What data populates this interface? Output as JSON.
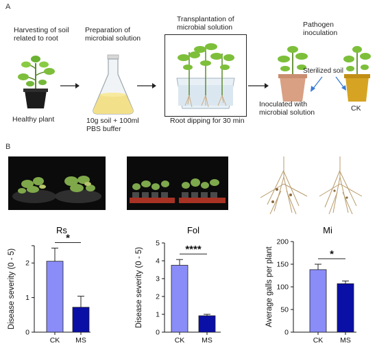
{
  "figure": {
    "panel_a_label": "A",
    "panel_b_label": "B",
    "steps": {
      "harvest": [
        "Harvesting of soil",
        "related to root"
      ],
      "healthy": "Healthy plant",
      "prep": [
        "Preparation of",
        "microbial solution"
      ],
      "recipe": [
        "10g soil + 100ml",
        "PBS buffer"
      ],
      "transplant": [
        "Transplantation of",
        "microbial solution"
      ],
      "root_dip": "Root dipping for 30 min",
      "pathogen": [
        "Pathogen",
        "inoculation"
      ],
      "sterilized": "Sterilized soil",
      "inoculated": [
        "Inoculated with",
        "microbial solution"
      ],
      "ck": "CK"
    }
  },
  "chart_data": [
    {
      "type": "bar",
      "title": "Rs",
      "ylabel": "Disease severity (0 - 5)",
      "categories": [
        "CK",
        "MS"
      ],
      "values": [
        2.05,
        0.72
      ],
      "errors": [
        0.38,
        0.32
      ],
      "ylim": [
        0,
        2.5
      ],
      "yticks": [
        "0",
        "1",
        "2"
      ],
      "significance": "*",
      "colors": [
        "#8a8cf8",
        "#0a0fa6"
      ]
    },
    {
      "type": "bar",
      "title": "Fol",
      "ylabel": "Disease severity (0 - 5)",
      "categories": [
        "CK",
        "MS"
      ],
      "values": [
        3.75,
        0.92
      ],
      "errors": [
        0.32,
        0.08
      ],
      "ylim": [
        0,
        5
      ],
      "yticks": [
        "0",
        "1",
        "2",
        "3",
        "4",
        "5"
      ],
      "significance": "****",
      "colors": [
        "#8a8cf8",
        "#0a0fa6"
      ]
    },
    {
      "type": "bar",
      "title": "Mi",
      "ylabel": "Average galls per plant",
      "categories": [
        "CK",
        "MS"
      ],
      "values": [
        138,
        107
      ],
      "errors": [
        12,
        6
      ],
      "ylim": [
        0,
        200
      ],
      "yticks": [
        "0",
        "50",
        "100",
        "150",
        "200"
      ],
      "significance": "*",
      "colors": [
        "#8a8cf8",
        "#0a0fa6"
      ]
    }
  ]
}
